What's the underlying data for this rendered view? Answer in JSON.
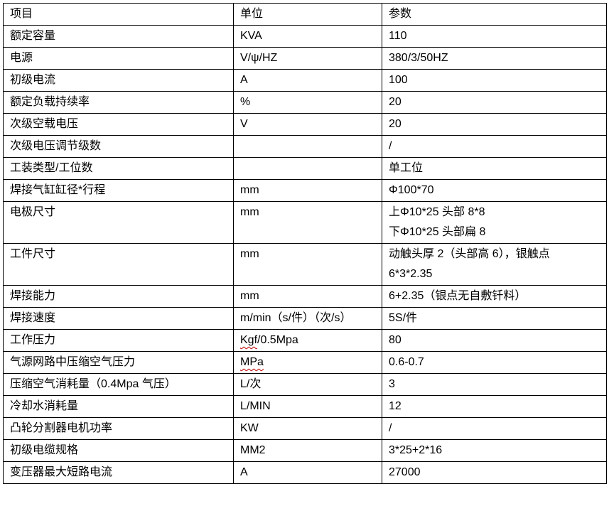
{
  "table": {
    "columns": [
      {
        "label": "项目"
      },
      {
        "label": "单位"
      },
      {
        "label": "参数"
      }
    ],
    "rows": [
      {
        "item": "额定容量",
        "unit": "KVA",
        "value": "110"
      },
      {
        "item": "电源",
        "unit": "V/ψ/HZ",
        "value": "380/3/50HZ"
      },
      {
        "item": "初级电流",
        "unit": "A",
        "value": "100"
      },
      {
        "item": "额定负载持续率",
        "unit": "%",
        "value": "20"
      },
      {
        "item": "次级空载电压",
        "unit": "V",
        "value": "20"
      },
      {
        "item": "次级电压调节级数",
        "unit": "",
        "value": "/"
      },
      {
        "item": "工装类型/工位数",
        "unit": "",
        "value": "单工位"
      },
      {
        "item": "焊接气缸缸径*行程",
        "unit": "mm",
        "value": "Φ100*70"
      },
      {
        "item": "电极尺寸",
        "unit": "mm",
        "value": "上Φ10*25 头部 8*8\n下Φ10*25 头部扁 8"
      },
      {
        "item": "工件尺寸",
        "unit": "mm",
        "value": "动触头厚 2（头部高 6），银触点\n6*3*2.35"
      },
      {
        "item": "焊接能力",
        "unit": "mm",
        "value": "6+2.35（银点无自敷钎料）"
      },
      {
        "item": "焊接速度",
        "unit": "m/min（s/件）（次/s）",
        "value": "5S/件"
      },
      {
        "item": "工作压力",
        "unit_marked": "Kgf",
        "unit_rest": "/0.5Mpa",
        "value": "80"
      },
      {
        "item": "气源网路中压缩空气压力",
        "unit_marked": "MPa",
        "unit_rest": "",
        "value": "0.6-0.7"
      },
      {
        "item": "压缩空气消耗量（0.4Mpa 气压）",
        "unit": "L/次",
        "value": "3"
      },
      {
        "item": "冷却水消耗量",
        "unit": "L/MIN",
        "value": "12"
      },
      {
        "item": "凸轮分割器电机功率",
        "unit": "KW",
        "value": "/"
      },
      {
        "item": "初级电缆规格",
        "unit": "MM2",
        "value": "3*25+2*16"
      },
      {
        "item": "变压器最大短路电流",
        "unit": "A",
        "value": "27000"
      }
    ],
    "spellcheck_color": "#c00000"
  }
}
